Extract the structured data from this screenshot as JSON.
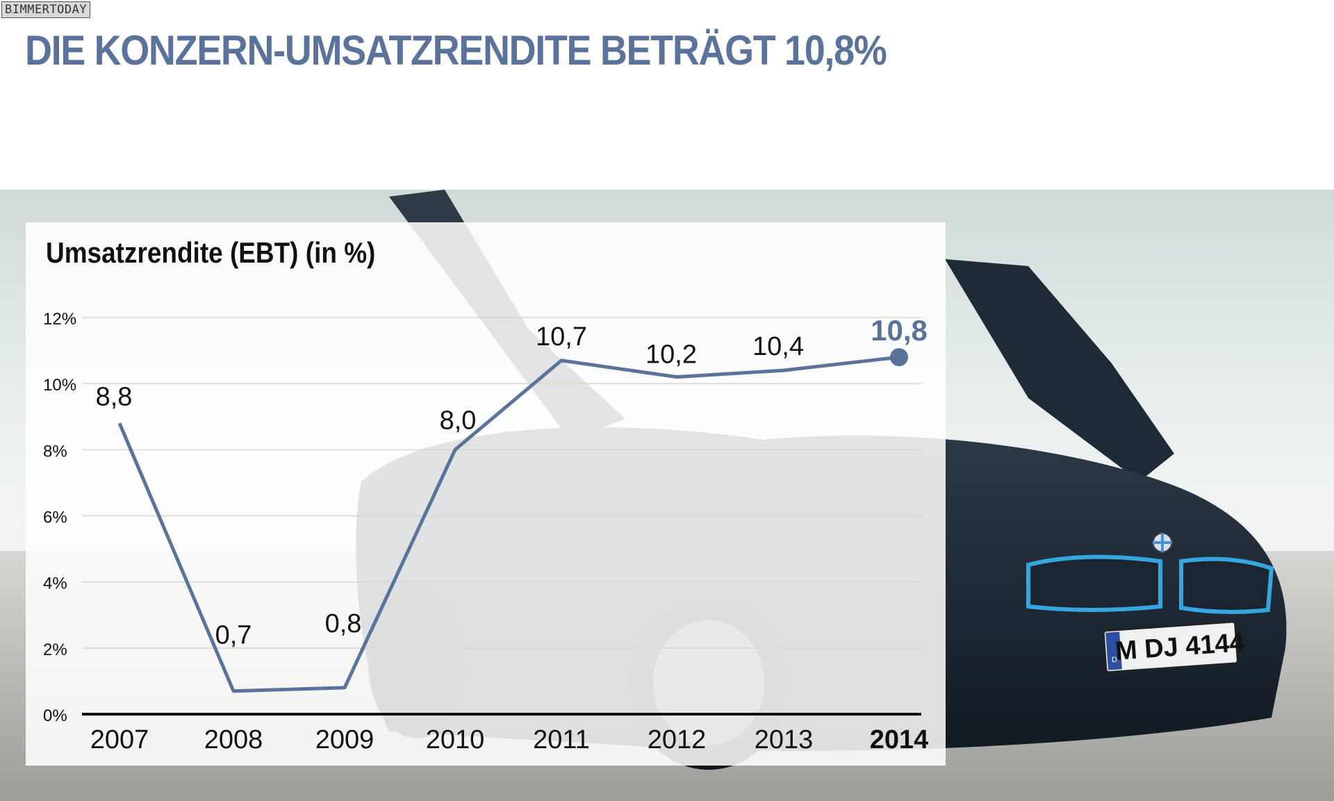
{
  "watermark": "BIMMERTODAY",
  "headline": "DIE KONZERN-UMSATZRENDITE BETRÄGT 10,8%",
  "colors": {
    "accent": "#5b739a",
    "text": "#111111",
    "grid": "#d8d6c8"
  },
  "car": {
    "plate": "M DJ 4144",
    "plate_country": "D",
    "icon": "bmw-logo-icon"
  },
  "chart_data": {
    "type": "line",
    "title": "Umsatzrendite (EBT)",
    "title_unit": "(in %)",
    "categories": [
      "2007",
      "2008",
      "2009",
      "2010",
      "2011",
      "2012",
      "2013",
      "2014"
    ],
    "values": [
      8.8,
      0.7,
      0.8,
      8.0,
      10.7,
      10.2,
      10.4,
      10.8
    ],
    "value_labels": [
      "8,8",
      "0,7",
      "0,8",
      "8,0",
      "10,7",
      "10,2",
      "10,4",
      "10,8"
    ],
    "y_ticks": [
      0,
      2,
      4,
      6,
      8,
      10,
      12
    ],
    "y_tick_labels": [
      "0%",
      "2%",
      "4%",
      "6%",
      "8%",
      "10%",
      "12%"
    ],
    "ylim": [
      0,
      12
    ],
    "grid": true,
    "highlight": "2014",
    "series_color": "#5b739a"
  }
}
